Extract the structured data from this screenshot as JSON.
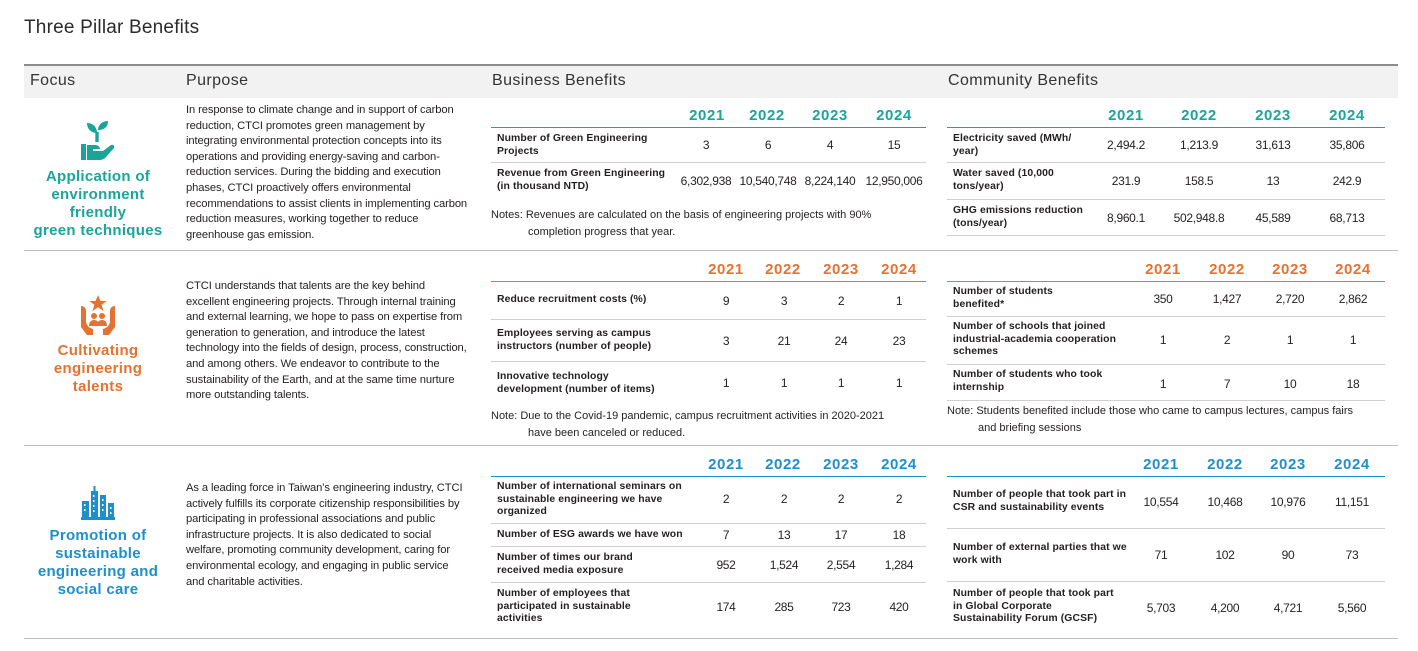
{
  "page_title": "Three Pillar Benefits",
  "columns": {
    "focus": "Focus",
    "purpose": "Purpose",
    "business": "Business Benefits",
    "community": "Community Benefits"
  },
  "colors": {
    "teal": "#1aa59b",
    "orange": "#e57230",
    "blue": "#1d8fcb",
    "text": "#231f20"
  },
  "pillars": [
    {
      "icon": "hand-plant-icon",
      "title_lines": [
        "Application of",
        "environment friendly",
        "green techniques"
      ],
      "purpose": "In response to climate change and in support of carbon reduction, CTCI promotes green management by integrating environmental protection concepts into its operations and providing energy-saving and carbon-reduction services. During the bidding and execution phases, CTCI proactively offers environmental recommendations to assist clients in implementing carbon reduction measures, working together to reduce greenhouse gas emission.",
      "business": {
        "years": [
          "2021",
          "2022",
          "2023",
          "2024"
        ],
        "rows": [
          {
            "label": "Number of Green Engineering Projects",
            "values": [
              "3",
              "6",
              "4",
              "15"
            ]
          },
          {
            "label": "Revenue from Green Engineering (in thousand NTD)",
            "values": [
              "6,302,938",
              "10,540,748",
              "8,224,140",
              "12,950,006"
            ]
          }
        ],
        "note_first": "Notes: Revenues are calculated on the basis of engineering projects with 90%",
        "note_rest": "completion progress that year."
      },
      "community": {
        "years": [
          "2021",
          "2022",
          "2023",
          "2024"
        ],
        "rows": [
          {
            "label": "Electricity saved (MWh/ year)",
            "values": [
              "2,494.2",
              "1,213.9",
              "31,613",
              "35,806"
            ]
          },
          {
            "label": "Water saved (10,000 tons/year)",
            "values": [
              "231.9",
              "158.5",
              "13",
              "242.9"
            ]
          },
          {
            "label": "GHG emissions reduction (tons/year)",
            "values": [
              "8,960.1",
              "502,948.8",
              "45,589",
              "68,713"
            ]
          }
        ]
      }
    },
    {
      "icon": "star-people-hands-icon",
      "title_lines": [
        "Cultivating",
        "engineering",
        "talents"
      ],
      "purpose": "CTCI understands that talents are the key behind excellent engineering projects. Through internal training and external learning, we hope to pass on expertise from generation to generation, and introduce the latest technology into the fields of design, process, construction, and among others. We endeavor to contribute to the sustainability of the Earth, and at the same time nurture more outstanding talents.",
      "business": {
        "years": [
          "2021",
          "2022",
          "2023",
          "2024"
        ],
        "rows": [
          {
            "label": "Reduce recruitment costs (%)",
            "values": [
              "9",
              "3",
              "2",
              "1"
            ]
          },
          {
            "label": "Employees serving as campus instructors (number of people)",
            "values": [
              "3",
              "21",
              "24",
              "23"
            ]
          },
          {
            "label": "Innovative technology development (number of items)",
            "values": [
              "1",
              "1",
              "1",
              "1"
            ]
          }
        ],
        "note_first": "Note: Due to the Covid-19 pandemic, campus recruitment activities in 2020-2021",
        "note_rest": "have been canceled or reduced."
      },
      "community": {
        "years": [
          "2021",
          "2022",
          "2023",
          "2024"
        ],
        "rows": [
          {
            "label": "Number of students benefited*",
            "values": [
              "350",
              "1,427",
              "2,720",
              "2,862"
            ]
          },
          {
            "label": "Number of schools that joined industrial-academia cooperation schemes",
            "values": [
              "1",
              "2",
              "1",
              "1"
            ]
          },
          {
            "label": "Number of students who took internship",
            "values": [
              "1",
              "7",
              "10",
              "18"
            ]
          }
        ],
        "note_first": "Note: Students benefited include those who came to campus lectures, campus fairs",
        "note_rest": "and briefing sessions"
      }
    },
    {
      "icon": "city-buildings-icon",
      "title_lines": [
        "Promotion of",
        "sustainable",
        "engineering and",
        "social care"
      ],
      "purpose": "As a leading force in Taiwan's engineering industry, CTCI actively fulfills its corporate citizenship responsibilities by participating in professional associations and public infrastructure projects. It is also dedicated to social welfare, promoting community development, caring for environmental ecology, and engaging in public service and charitable activities.",
      "business": {
        "years": [
          "2021",
          "2022",
          "2023",
          "2024"
        ],
        "rows": [
          {
            "label": "Number of international seminars on sustainable engineering we have organized",
            "values": [
              "2",
              "2",
              "2",
              "2"
            ]
          },
          {
            "label": "Number of ESG awards we have won",
            "values": [
              "7",
              "13",
              "17",
              "18"
            ]
          },
          {
            "label": "Number of times our brand received media exposure",
            "values": [
              "952",
              "1,524",
              "2,554",
              "1,284"
            ]
          },
          {
            "label": "Number of employees that participated in sustainable activities",
            "values": [
              "174",
              "285",
              "723",
              "420"
            ]
          }
        ]
      },
      "community": {
        "years": [
          "2021",
          "2022",
          "2023",
          "2024"
        ],
        "rows": [
          {
            "label": "Number of people that took part in CSR and sustainability events",
            "values": [
              "10,554",
              "10,468",
              "10,976",
              "11,151"
            ]
          },
          {
            "label": "Number of external parties that we work with",
            "values": [
              "71",
              "102",
              "90",
              "73"
            ]
          },
          {
            "label": "Number of people that took part in Global Corporate Sustainability Forum (GCSF)",
            "values": [
              "5,703",
              "4,200",
              "4,721",
              "5,560"
            ]
          }
        ]
      }
    }
  ]
}
